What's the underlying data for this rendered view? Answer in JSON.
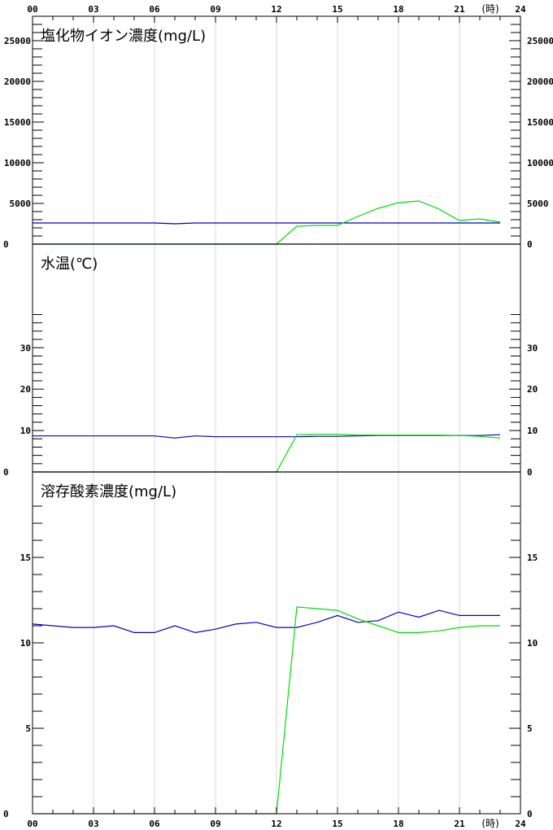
{
  "chart_data": [
    {
      "type": "line",
      "title": "塩化物イオン濃度(mg/L)",
      "ylim": [
        0,
        28000
      ],
      "yticks": [
        0,
        5000,
        10000,
        15000,
        20000,
        25000
      ],
      "y_minor_step": 1000,
      "x": [
        0,
        1,
        2,
        3,
        4,
        5,
        6,
        7,
        8,
        9,
        10,
        11,
        12,
        13,
        14,
        15,
        16,
        17,
        18,
        19,
        20,
        21,
        22,
        23
      ],
      "series": [
        {
          "color": "#0000c0",
          "values": [
            2600,
            2600,
            2600,
            2600,
            2600,
            2600,
            2600,
            2500,
            2600,
            2600,
            2600,
            2600,
            2600,
            2600,
            2600,
            2600,
            2600,
            2600,
            2600,
            2600,
            2600,
            2600,
            2600,
            2600
          ]
        },
        {
          "color": "#00dd00",
          "values": [
            0,
            0,
            0,
            0,
            0,
            0,
            0,
            0,
            0,
            0,
            0,
            0,
            0,
            2200,
            2300,
            2300,
            3400,
            4400,
            5100,
            5300,
            4300,
            2900,
            3100,
            2700
          ]
        }
      ]
    },
    {
      "type": "line",
      "title": "水温(℃)",
      "ylim": [
        0,
        55
      ],
      "yticks": [
        0,
        10,
        20,
        30
      ],
      "y_minor_step": 2,
      "y_minor_max": 38,
      "x": [
        0,
        1,
        2,
        3,
        4,
        5,
        6,
        7,
        8,
        9,
        10,
        11,
        12,
        13,
        14,
        15,
        16,
        17,
        18,
        19,
        20,
        21,
        22,
        23
      ],
      "series": [
        {
          "color": "#0000c0",
          "values": [
            8.7,
            8.7,
            8.7,
            8.7,
            8.7,
            8.7,
            8.7,
            8.2,
            8.7,
            8.5,
            8.5,
            8.5,
            8.5,
            8.5,
            8.6,
            8.6,
            8.7,
            8.8,
            8.8,
            8.8,
            8.8,
            8.8,
            8.8,
            9.0
          ]
        },
        {
          "color": "#00dd00",
          "values": [
            0,
            0,
            0,
            0,
            0,
            0,
            0,
            0,
            0,
            0,
            0,
            0,
            0,
            9.0,
            9.1,
            9.1,
            8.9,
            8.9,
            8.9,
            8.9,
            8.9,
            8.8,
            8.6,
            8.2
          ]
        }
      ]
    },
    {
      "type": "line",
      "title": "溶存酸素濃度(mg/L)",
      "ylim": [
        0,
        20
      ],
      "yticks": [
        0,
        5,
        10,
        15
      ],
      "y_minor_step": 1,
      "y_minor_max": 18,
      "x": [
        0,
        1,
        2,
        3,
        4,
        5,
        6,
        7,
        8,
        9,
        10,
        11,
        12,
        13,
        14,
        15,
        16,
        17,
        18,
        19,
        20,
        21,
        22,
        23
      ],
      "series": [
        {
          "color": "#0000c0",
          "values": [
            11.1,
            11.0,
            10.9,
            10.9,
            11.0,
            10.6,
            10.6,
            11.0,
            10.6,
            10.8,
            11.1,
            11.2,
            10.9,
            10.9,
            11.2,
            11.6,
            11.2,
            11.3,
            11.8,
            11.5,
            11.9,
            11.6,
            11.6,
            11.6
          ]
        },
        {
          "color": "#00dd00",
          "values": [
            0,
            0,
            0,
            0,
            0,
            0,
            0,
            0,
            0,
            0,
            0,
            0,
            0,
            12.1,
            12.0,
            11.9,
            11.4,
            11.0,
            10.6,
            10.6,
            10.7,
            10.9,
            11.0,
            11.0
          ]
        }
      ]
    }
  ],
  "x_axis": {
    "tick_labels": [
      "00",
      "03",
      "06",
      "09",
      "12",
      "15",
      "18",
      "21",
      "24"
    ],
    "unit": "(時)",
    "xlim": [
      0,
      24
    ]
  }
}
